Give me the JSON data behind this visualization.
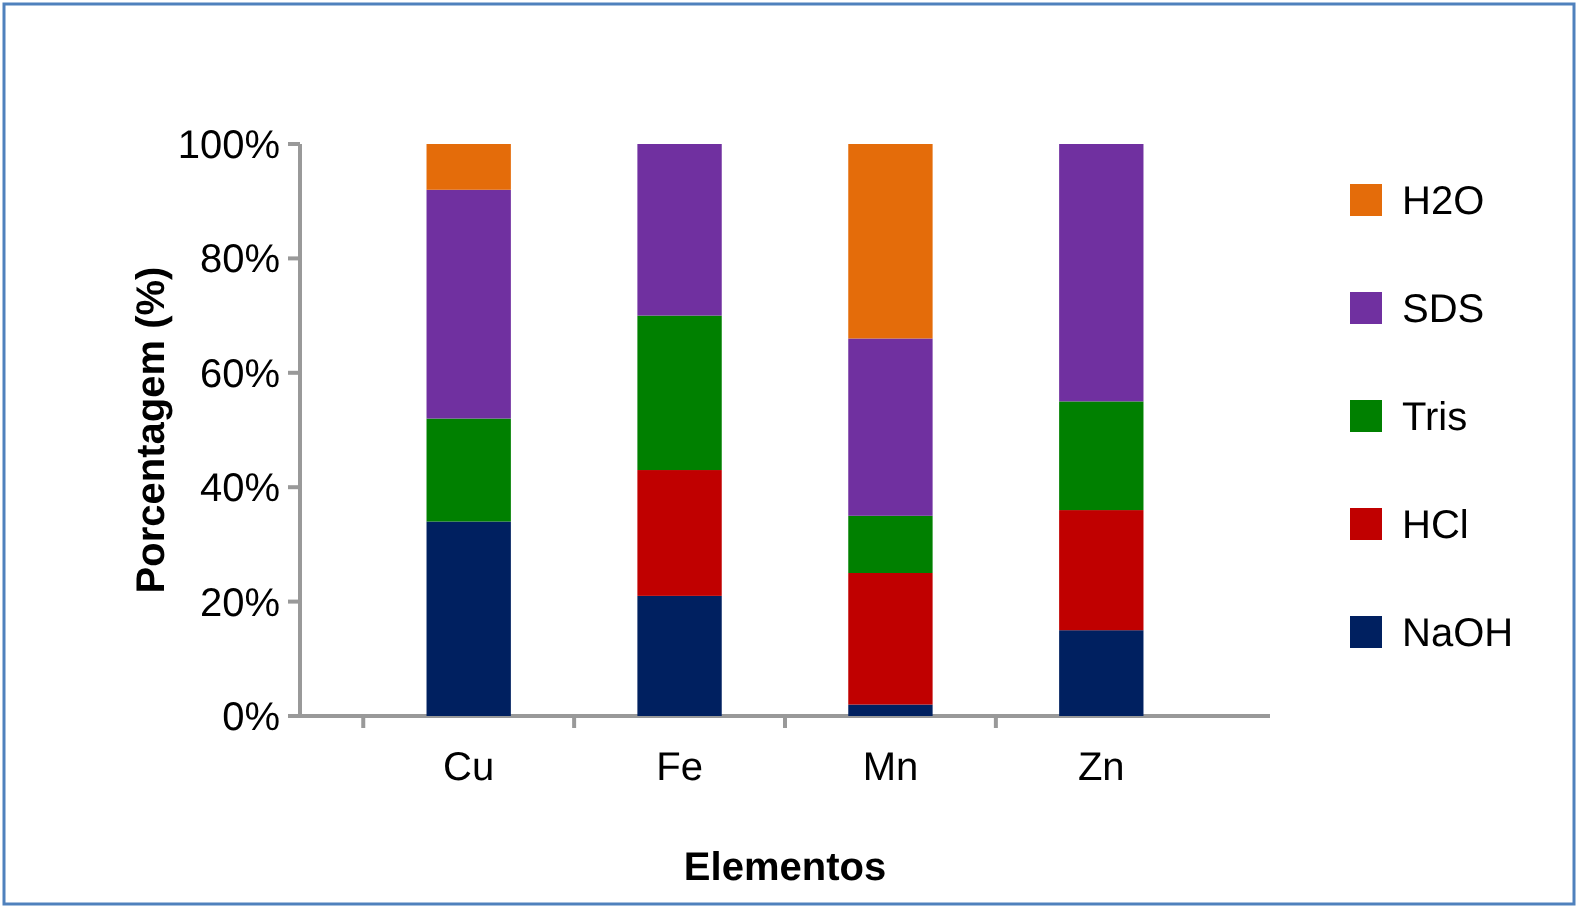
{
  "chart_data": {
    "type": "bar",
    "stacked": true,
    "xlabel": "Elementos",
    "ylabel": "Porcentagem (%)",
    "categories": [
      "Cu",
      "Fe",
      "Mn",
      "Zn"
    ],
    "series": [
      {
        "name": "NaOH",
        "color": "#002060",
        "values": [
          34,
          21,
          2,
          15
        ]
      },
      {
        "name": "HCl",
        "color": "#c00000",
        "values": [
          0,
          22,
          23,
          21
        ]
      },
      {
        "name": "Tris",
        "color": "#008000",
        "values": [
          18,
          27,
          10,
          19
        ]
      },
      {
        "name": "SDS",
        "color": "#7030a0",
        "values": [
          40,
          30,
          31,
          45
        ]
      },
      {
        "name": "H2O",
        "color": "#e46c0a",
        "values": [
          8,
          0,
          34,
          0
        ]
      }
    ],
    "ylim": [
      0,
      100
    ],
    "yticks": [
      {
        "value": 0,
        "label": "0%"
      },
      {
        "value": 20,
        "label": "20%"
      },
      {
        "value": 40,
        "label": "40%"
      },
      {
        "value": 60,
        "label": "60%"
      },
      {
        "value": 80,
        "label": "80%"
      },
      {
        "value": 100,
        "label": "100%"
      }
    ],
    "grid": false,
    "legend": "right"
  }
}
